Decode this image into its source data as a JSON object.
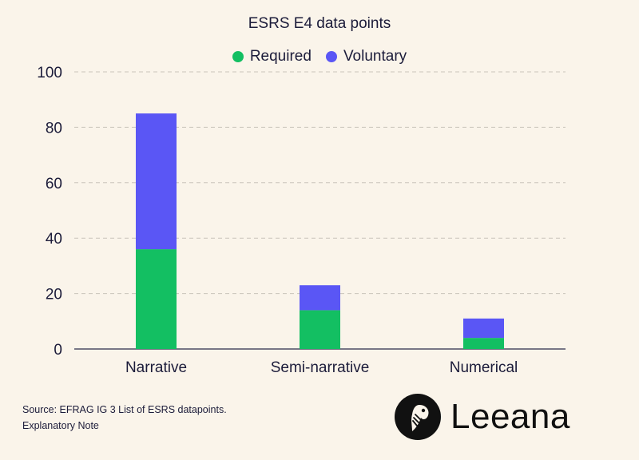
{
  "chart_data": {
    "type": "bar",
    "stacked": true,
    "title": "ESRS E4 data points",
    "categories": [
      "Narrative",
      "Semi-narrative",
      "Numerical"
    ],
    "series": [
      {
        "name": "Required",
        "values": [
          36,
          14,
          4
        ],
        "color": "#13bf62"
      },
      {
        "name": "Voluntary",
        "values": [
          49,
          9,
          7
        ],
        "color": "#5a56f5"
      }
    ],
    "ylim": [
      0,
      100
    ],
    "yticks": [
      "0",
      "20",
      "40",
      "60",
      "80",
      "100"
    ],
    "ytick_values": [
      0,
      20,
      40,
      60,
      80,
      100
    ],
    "grid": true,
    "legend_position": "top-center",
    "xlabel": "",
    "ylabel": ""
  },
  "source": {
    "line1": "Source: EFRAG IG 3 List of ESRS datapoints.",
    "line2": "Explanatory Note"
  },
  "brand": {
    "name": "Leeana",
    "logo_icon": "parrot-logo-icon"
  },
  "colors": {
    "background": "#faf4ea",
    "required": "#13bf62",
    "voluntary": "#5a56f5",
    "text": "#1c1c3a"
  }
}
